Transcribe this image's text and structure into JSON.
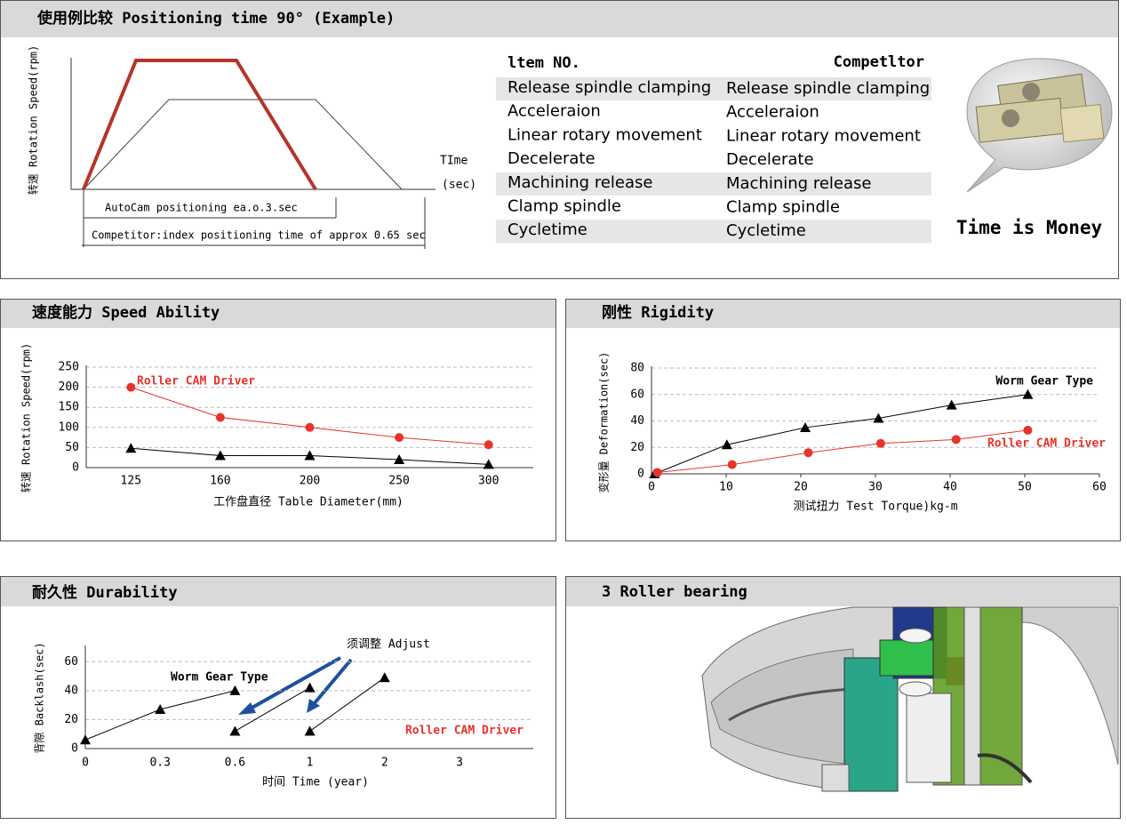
{
  "positioning": {
    "title": "使用例比较 Positioning time 90° (Example)",
    "diagram": {
      "y_label": "转速 Rotation Speed(rpm)",
      "time_label": "TIme",
      "time_unit": "(sec)",
      "autocam": "AutoCam positioning ea.o.3.sec",
      "competitor": "Competitor:index positioning time of approx 0.65 sec"
    },
    "table": {
      "header": [
        "ltem NO.",
        "Competltor"
      ],
      "rows": [
        [
          "Release spindle clamping",
          "Release spindle clamping"
        ],
        [
          "Acceleraion",
          "Acceleraion"
        ],
        [
          "Linear rotary movement",
          "Linear rotary movement"
        ],
        [
          "Decelerate",
          "Decelerate"
        ],
        [
          "Machining release",
          "Machining release"
        ],
        [
          "Clamp spindle",
          "Clamp spindle"
        ],
        [
          "Cycletime",
          "Cycletime"
        ]
      ]
    },
    "slogan": "Time is Money"
  },
  "roller_bearing": {
    "title": "3 Roller bearing"
  },
  "chart_data": [
    {
      "type": "line",
      "title": "速度能力 Speed Ability",
      "x_label": "工作盘直径 Table  Diameter(mm)",
      "y_label": "转速 Rotation Speed(rpm)",
      "categories": [
        "125",
        "160",
        "200",
        "250",
        "300"
      ],
      "series": [
        {
          "name": "Roller CAM Driver",
          "color": "#e8332a",
          "marker": "circle",
          "values": [
            200,
            125,
            100,
            75,
            57
          ]
        },
        {
          "color": "#000000",
          "marker": "triangle",
          "values": [
            48,
            30,
            30,
            20,
            8
          ]
        }
      ],
      "ylim": [
        0,
        250
      ],
      "yticks": [
        0,
        50,
        100,
        150,
        200,
        250
      ],
      "grid": true
    },
    {
      "type": "line",
      "title": "刚性 Rigidity",
      "x_label": "测试扭力 Test Torque)kg-m",
      "y_label": "变形量 Deformation(sec)",
      "series": [
        {
          "name": "Worm Gear Type",
          "color": "#000000",
          "marker": "triangle",
          "x": [
            0.4,
            10.1,
            20.6,
            30.4,
            40.2,
            50.4
          ],
          "values": [
            0,
            22,
            35,
            42,
            52,
            60
          ]
        },
        {
          "name": "Roller CAM Driver",
          "color": "#e8332a",
          "marker": "circle",
          "x": [
            0.8,
            10.8,
            21,
            30.7,
            40.8,
            50.4
          ],
          "values": [
            1,
            7,
            16,
            23,
            26,
            33
          ]
        }
      ],
      "xlim": [
        0,
        60
      ],
      "xticks": [
        0,
        10,
        20,
        30,
        40,
        50,
        60
      ],
      "ylim": [
        0,
        80
      ],
      "yticks": [
        0,
        20,
        40,
        60,
        80
      ],
      "grid": true
    },
    {
      "type": "line",
      "title": "耐久性 Durability",
      "x_label": "时间 Time (year)",
      "y_label": "背隙 Backlash(sec)",
      "categories": [
        "0",
        "0.3",
        "0.6",
        "1",
        "2",
        "3"
      ],
      "series": [
        {
          "name": "Worm Gear Type",
          "color": "#000000",
          "marker": "triangle",
          "values": [
            6,
            27,
            40,
            null,
            null,
            null
          ]
        },
        {
          "color": "#000000",
          "marker": "triangle",
          "values": [
            null,
            null,
            12,
            42,
            null,
            null
          ]
        },
        {
          "color": "#000000",
          "marker": "triangle",
          "values": [
            null,
            null,
            null,
            12,
            49,
            null
          ]
        }
      ],
      "annotations": [
        {
          "text": "须调整 Adjust",
          "color": "#000000"
        },
        {
          "text": "Roller CAM Driver",
          "color": "#e8332a"
        }
      ],
      "ylim": [
        0,
        70
      ],
      "yticks": [
        0,
        20,
        40,
        60
      ],
      "grid": true
    }
  ]
}
